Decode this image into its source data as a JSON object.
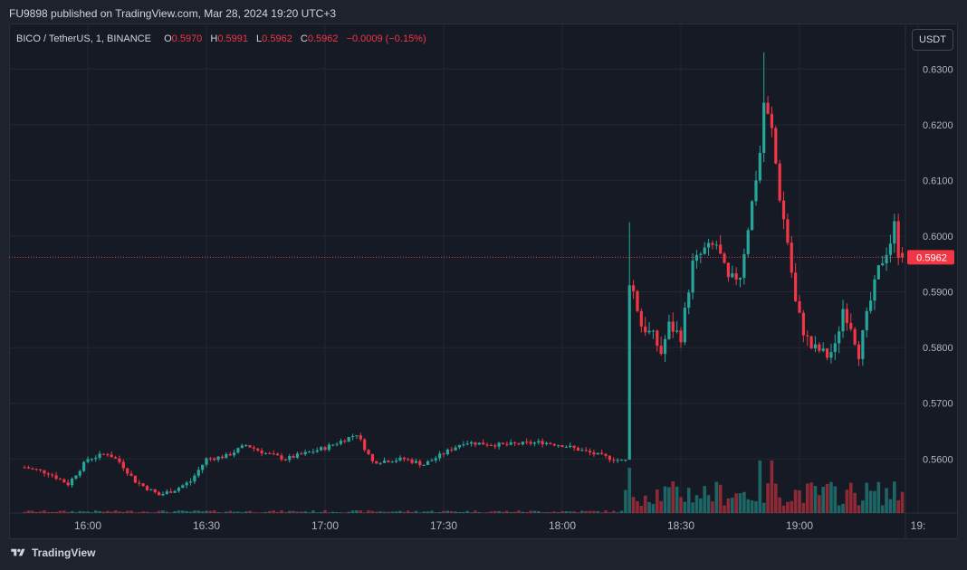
{
  "header": {
    "published_text": "FU9898 published on TradingView.com, Mar 28, 2024 19:20 UTC+3"
  },
  "legend": {
    "symbol": "BICO / TetherUS, 1, BINANCE",
    "o_label": "O",
    "o_value": "0.5970",
    "h_label": "H",
    "h_value": "0.5991",
    "l_label": "L",
    "l_value": "0.5962",
    "c_label": "C",
    "c_value": "0.5962",
    "change": "−0.0009 (−0.15%)"
  },
  "currency_button": "USDT",
  "footer": {
    "brand": "TradingView"
  },
  "colors": {
    "up": "#26a69a",
    "down": "#f23645",
    "grid": "#232733",
    "text": "#b2b5be"
  },
  "chart_data": {
    "type": "candlestick",
    "symbol": "BICO / TetherUS",
    "interval": "1",
    "exchange": "BINANCE",
    "y_ticks": [
      "0.5600",
      "0.5700",
      "0.5800",
      "0.5900",
      "0.6000",
      "0.6100",
      "0.6200",
      "0.6300"
    ],
    "x_ticks": [
      "16:00",
      "16:30",
      "17:00",
      "17:30",
      "18:00",
      "18:30",
      "19:00",
      "19:"
    ],
    "ylim": [
      0.5503,
      0.638
    ],
    "last_price": "0.5962",
    "anchors": [
      [
        "15:44",
        0.5585
      ],
      [
        "15:50",
        0.5575
      ],
      [
        "15:55",
        0.5555
      ],
      [
        "16:00",
        0.56
      ],
      [
        "16:05",
        0.561
      ],
      [
        "16:08",
        0.5595
      ],
      [
        "16:12",
        0.556
      ],
      [
        "16:18",
        0.5535
      ],
      [
        "16:22",
        0.5545
      ],
      [
        "16:26",
        0.556
      ],
      [
        "16:30",
        0.56
      ],
      [
        "16:35",
        0.5605
      ],
      [
        "16:40",
        0.5625
      ],
      [
        "16:45",
        0.561
      ],
      [
        "16:50",
        0.56
      ],
      [
        "16:55",
        0.561
      ],
      [
        "17:00",
        0.562
      ],
      [
        "17:05",
        0.5635
      ],
      [
        "17:08",
        0.5645
      ],
      [
        "17:12",
        0.5595
      ],
      [
        "17:20",
        0.56
      ],
      [
        "17:25",
        0.559
      ],
      [
        "17:30",
        0.561
      ],
      [
        "17:35",
        0.563
      ],
      [
        "17:45",
        0.5625
      ],
      [
        "17:55",
        0.563
      ],
      [
        "18:00",
        0.5625
      ],
      [
        "18:05",
        0.5615
      ],
      [
        "18:10",
        0.5605
      ],
      [
        "18:16",
        0.5595
      ],
      [
        "18:17",
        0.592
      ],
      [
        "18:18",
        0.59
      ],
      [
        "18:20",
        0.584
      ],
      [
        "18:23",
        0.582
      ],
      [
        "18:25",
        0.579
      ],
      [
        "18:27",
        0.584
      ],
      [
        "18:30",
        0.582
      ],
      [
        "18:33",
        0.595
      ],
      [
        "18:36",
        0.5975
      ],
      [
        "18:39",
        0.5985
      ],
      [
        "18:42",
        0.592
      ],
      [
        "18:45",
        0.593
      ],
      [
        "18:48",
        0.606
      ],
      [
        "18:50",
        0.615
      ],
      [
        "18:51",
        0.624
      ],
      [
        "18:53",
        0.619
      ],
      [
        "18:55",
        0.607
      ],
      [
        "18:57",
        0.599
      ],
      [
        "18:59",
        0.588
      ],
      [
        "19:01",
        0.583
      ],
      [
        "19:03",
        0.58
      ],
      [
        "19:05",
        0.5795
      ],
      [
        "19:07",
        0.5785
      ],
      [
        "19:09",
        0.58
      ],
      [
        "19:11",
        0.587
      ],
      [
        "19:13",
        0.584
      ],
      [
        "19:15",
        0.579
      ],
      [
        "19:17",
        0.5855
      ],
      [
        "19:20",
        0.594
      ],
      [
        "19:23",
        0.599
      ],
      [
        "19:24",
        0.602
      ],
      [
        "19:25",
        0.597
      ],
      [
        "19:26",
        0.5962
      ]
    ]
  }
}
